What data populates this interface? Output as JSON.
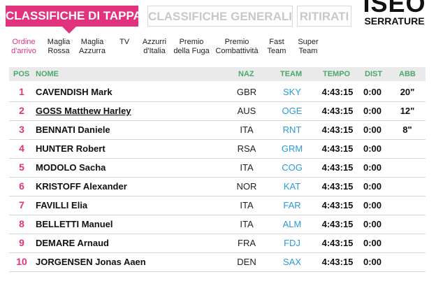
{
  "tabs": {
    "active": "CLASSIFICHE DI TAPPA",
    "generali": "CLASSIFICHE GENERALI",
    "ritirati": "RITIRATI"
  },
  "logo": {
    "top": "ISEO",
    "bottom": "SERRATURE"
  },
  "subtabs": [
    {
      "line1": "Ordine",
      "line2": "d'arrivo",
      "active": true
    },
    {
      "line1": "Maglia",
      "line2": "Rossa",
      "active": false
    },
    {
      "line1": "Maglia",
      "line2": "Azzurra",
      "active": false
    },
    {
      "line1": "TV",
      "line2": "",
      "active": false
    },
    {
      "line1": "Azzurri",
      "line2": "d'Italia",
      "active": false
    },
    {
      "line1": "Premio",
      "line2": "della Fuga",
      "active": false
    },
    {
      "line1": "Premio",
      "line2": "Combattività",
      "active": false
    },
    {
      "line1": "Fast",
      "line2": "Team",
      "active": false
    },
    {
      "line1": "Super",
      "line2": "Team",
      "active": false
    }
  ],
  "table": {
    "headers": {
      "pos": "POS",
      "nome": "NOME",
      "naz": "NAZ",
      "team": "TEAM",
      "tempo": "TEMPO",
      "dist": "DIST",
      "abb": "ABB"
    },
    "rows": [
      {
        "pos": "1",
        "nome": "CAVENDISH Mark",
        "naz": "GBR",
        "team": "SKY",
        "tempo": "4:43:15",
        "dist": "0:00",
        "abb": "20\""
      },
      {
        "pos": "2",
        "nome": "GOSS Matthew Harley",
        "naz": "AUS",
        "team": "OGE",
        "tempo": "4:43:15",
        "dist": "0:00",
        "abb": "12\""
      },
      {
        "pos": "3",
        "nome": "BENNATI Daniele",
        "naz": "ITA",
        "team": "RNT",
        "tempo": "4:43:15",
        "dist": "0:00",
        "abb": "8\""
      },
      {
        "pos": "4",
        "nome": "HUNTER Robert",
        "naz": "RSA",
        "team": "GRM",
        "tempo": "4:43:15",
        "dist": "0:00",
        "abb": ""
      },
      {
        "pos": "5",
        "nome": "MODOLO Sacha",
        "naz": "ITA",
        "team": "COG",
        "tempo": "4:43:15",
        "dist": "0:00",
        "abb": ""
      },
      {
        "pos": "6",
        "nome": "KRISTOFF Alexander",
        "naz": "NOR",
        "team": "KAT",
        "tempo": "4:43:15",
        "dist": "0:00",
        "abb": ""
      },
      {
        "pos": "7",
        "nome": "FAVILLI Elia",
        "naz": "ITA",
        "team": "FAR",
        "tempo": "4:43:15",
        "dist": "0:00",
        "abb": ""
      },
      {
        "pos": "8",
        "nome": "BELLETTI Manuel",
        "naz": "ITA",
        "team": "ALM",
        "tempo": "4:43:15",
        "dist": "0:00",
        "abb": ""
      },
      {
        "pos": "9",
        "nome": "DEMARE Arnaud",
        "naz": "FRA",
        "team": "FDJ",
        "tempo": "4:43:15",
        "dist": "0:00",
        "abb": ""
      },
      {
        "pos": "10",
        "nome": "JORGENSEN Jonas Aaen",
        "naz": "DEN",
        "team": "SAX",
        "tempo": "4:43:15",
        "dist": "0:00",
        "abb": ""
      }
    ]
  },
  "colors": {
    "accent": "#e1327d",
    "header_text": "#4aa96a",
    "team_text": "#2a9ad8"
  }
}
